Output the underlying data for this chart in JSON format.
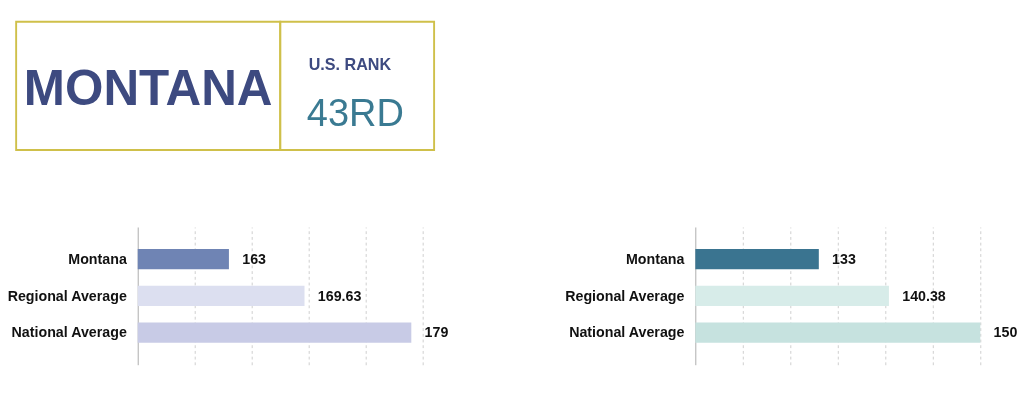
{
  "chart_data": [
    {
      "type": "other",
      "title": "MONTANA",
      "annotations": [
        "U.S. RANK",
        "43RD"
      ]
    },
    {
      "type": "bar",
      "orientation": "horizontal",
      "categories": [
        "Montana",
        "Regional Average",
        "National Average"
      ],
      "values": [
        163,
        169.63,
        179
      ],
      "colors": [
        "#6f84b4",
        "#dcdff0",
        "#c8cbe6"
      ],
      "xlim": [
        155,
        180
      ],
      "xticks": [
        {
          "value": 160,
          "label": null
        },
        {
          "value": 165,
          "label": null
        },
        {
          "value": 170,
          "label": null
        },
        {
          "value": 175,
          "label": null
        },
        {
          "value": 180,
          "label": null
        }
      ],
      "grid": "x",
      "data_labels": true,
      "tick_labels": "y"
    },
    {
      "type": "bar",
      "orientation": "horizontal",
      "categories": [
        "Montana",
        "Regional Average",
        "National Average"
      ],
      "values": [
        133,
        140.38,
        150
      ],
      "colors": [
        "#3a7490",
        "#d7ece9",
        "#c6e2df"
      ],
      "xlim": [
        120,
        150
      ],
      "xticks": [
        {
          "value": 125,
          "label": null
        },
        {
          "value": 130,
          "label": null
        },
        {
          "value": 135,
          "label": null
        },
        {
          "value": 140,
          "label": null
        },
        {
          "value": 145,
          "label": null
        },
        {
          "value": 150,
          "label": null
        }
      ],
      "grid": "x",
      "data_labels": true,
      "tick_labels": "y"
    }
  ]
}
